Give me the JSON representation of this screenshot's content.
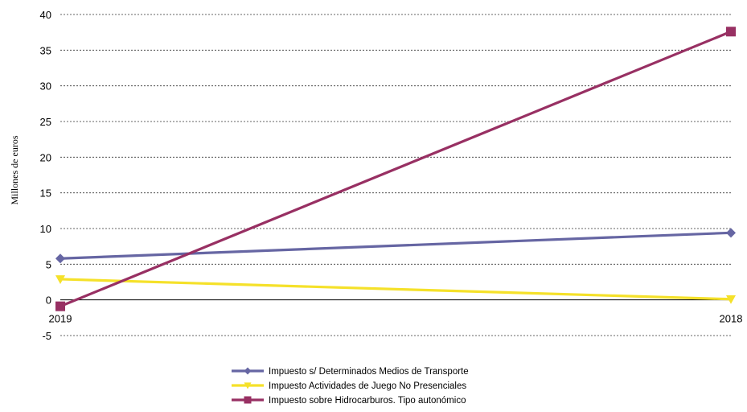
{
  "chart_data": {
    "type": "line",
    "title": "",
    "xlabel": "",
    "ylabel": "Millones de euros",
    "categories": [
      "2019",
      "2018"
    ],
    "ylim": [
      -5,
      40
    ],
    "yticks": [
      -5,
      0,
      5,
      10,
      15,
      20,
      25,
      30,
      35,
      40
    ],
    "grid": true,
    "legend_position": "bottom",
    "series": [
      {
        "name": "Impuesto s/ Determinados Medios de Transporte",
        "values": [
          5.8,
          9.4
        ],
        "color": "#6666a3",
        "marker": "diamond"
      },
      {
        "name": "Impuesto Actividades de Juego No Presenciales",
        "values": [
          2.9,
          0.1
        ],
        "color": "#f5e12a",
        "marker": "triangle-down"
      },
      {
        "name": "Impuesto sobre Hidrocarburos. Tipo autonómico",
        "values": [
          -0.9,
          37.6
        ],
        "color": "#983063",
        "marker": "square"
      }
    ]
  }
}
